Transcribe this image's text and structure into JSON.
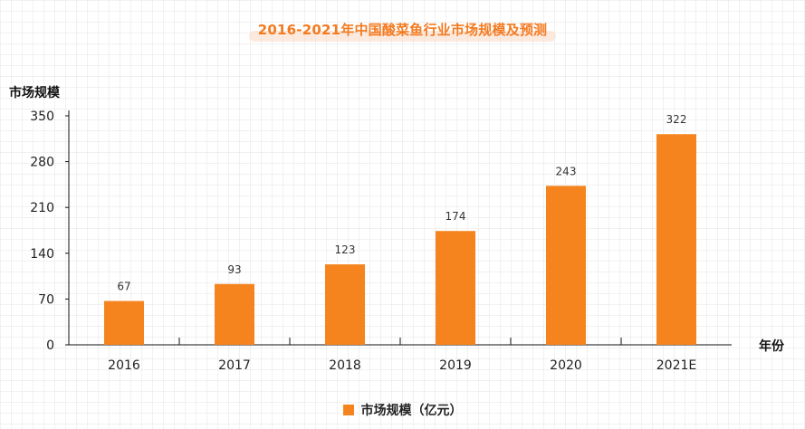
{
  "chart_data": {
    "type": "bar",
    "title": "2016-2021年中国酸菜鱼行业市场规模及预测",
    "ylabel": "市场规模",
    "xlabel": "年份",
    "categories": [
      "2016",
      "2017",
      "2018",
      "2019",
      "2020",
      "2021E"
    ],
    "series": [
      {
        "name": "市场规模（亿元）",
        "values": [
          67,
          93,
          123,
          174,
          243,
          322
        ]
      }
    ],
    "yticks": [
      0,
      70,
      140,
      210,
      280,
      350
    ],
    "ylim": [
      0,
      350
    ],
    "legend_position": "bottom",
    "bar_color": "#f5841f"
  }
}
